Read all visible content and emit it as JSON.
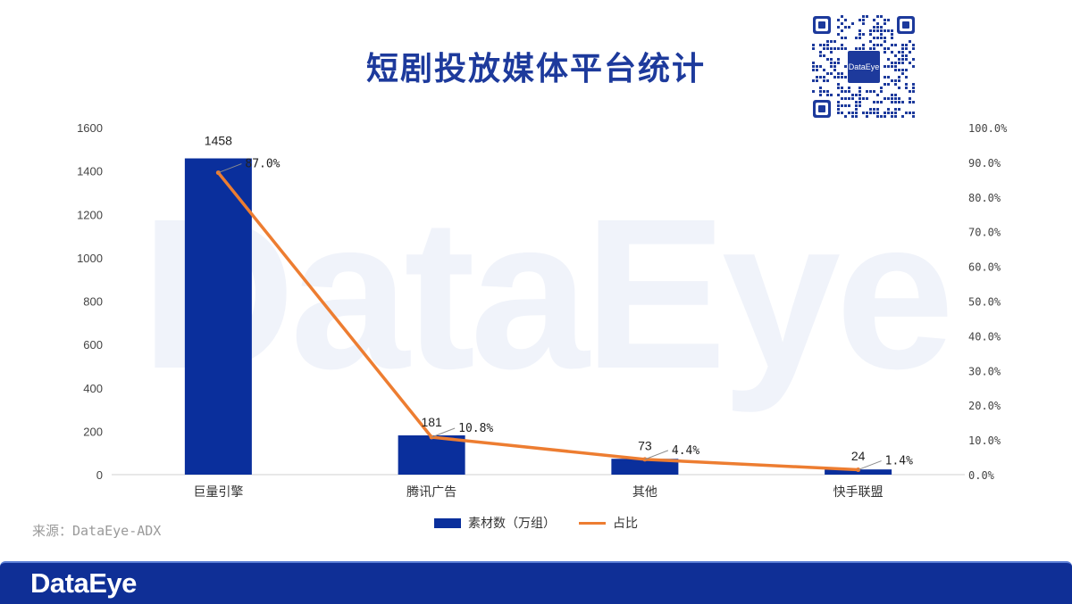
{
  "title": "短剧投放媒体平台统计",
  "qr_center_text": "DataEye",
  "watermark": "DataEye",
  "source": "来源：DataEye-ADX",
  "footer_logo": "DataEye",
  "colors": {
    "bar": "#0a2f9c",
    "line": "#ed7d31",
    "title": "#1d3a9c",
    "footer": "#0f2f96",
    "watermark": "#f0f3fa"
  },
  "chart_data": {
    "type": "bar",
    "categories": [
      "巨量引擎",
      "腾讯广告",
      "其他",
      "快手联盟"
    ],
    "series": [
      {
        "name": "素材数（万组）",
        "type": "bar",
        "axis": "left",
        "values": [
          1458,
          181,
          73,
          24
        ],
        "labels": [
          "1458",
          "181",
          "73",
          "24"
        ]
      },
      {
        "name": "占比",
        "type": "line",
        "axis": "right",
        "values": [
          87.0,
          10.8,
          4.4,
          1.4
        ],
        "labels": [
          "87.0%",
          "10.8%",
          "4.4%",
          "1.4%"
        ]
      }
    ],
    "y_left": {
      "min": 0,
      "max": 1600,
      "ticks": [
        "0",
        "200",
        "400",
        "600",
        "800",
        "1000",
        "1200",
        "1400",
        "1600"
      ]
    },
    "y_right": {
      "min": 0,
      "max": 100,
      "ticks": [
        "0.0%",
        "10.0%",
        "20.0%",
        "30.0%",
        "40.0%",
        "50.0%",
        "60.0%",
        "70.0%",
        "80.0%",
        "90.0%",
        "100.0%"
      ]
    },
    "legend": {
      "position": "bottom",
      "items": [
        "素材数（万组）",
        "占比"
      ]
    },
    "grid": false
  }
}
